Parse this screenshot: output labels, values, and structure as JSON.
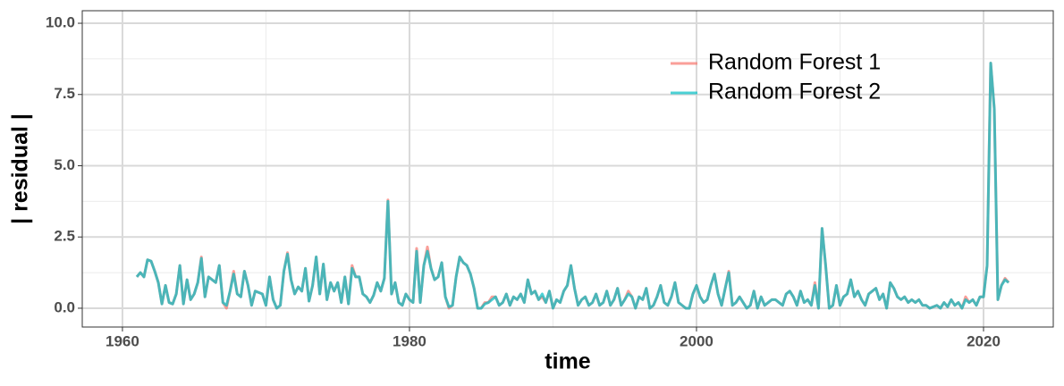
{
  "chart_data": {
    "type": "line",
    "xlabel": "time",
    "ylabel": "| residual |",
    "xlim": [
      1957.2,
      2024.86
    ],
    "ylim": [
      -0.66,
      10.44
    ],
    "xticks": [
      1960,
      1980,
      2000,
      2020
    ],
    "yticks": [
      {
        "value": 0,
        "label": "0.0"
      },
      {
        "value": 2.5,
        "label": "2.5"
      },
      {
        "value": 5,
        "label": "5.0"
      },
      {
        "value": 7.5,
        "label": "7.5"
      },
      {
        "value": 10,
        "label": "10.0"
      }
    ],
    "x_minor_gridlines": [
      1970,
      1990,
      2010
    ],
    "y_minor_gridlines": [
      1.25,
      3.75,
      6.25,
      8.75
    ],
    "grid": true,
    "legend_position": "top-right",
    "line_alpha": 0.7,
    "x": [
      1961,
      1961.25,
      1961.5,
      1961.75,
      1962,
      1962.25,
      1962.5,
      1962.75,
      1963,
      1963.25,
      1963.5,
      1963.75,
      1964,
      1964.25,
      1964.5,
      1964.75,
      1965,
      1965.25,
      1965.5,
      1965.75,
      1966,
      1966.25,
      1966.5,
      1966.75,
      1967,
      1967.25,
      1967.5,
      1967.75,
      1968,
      1968.25,
      1968.5,
      1968.75,
      1969,
      1969.25,
      1969.5,
      1969.75,
      1970,
      1970.25,
      1970.5,
      1970.75,
      1971,
      1971.25,
      1971.5,
      1971.75,
      1972,
      1972.25,
      1972.5,
      1972.75,
      1973,
      1973.25,
      1973.5,
      1973.75,
      1974,
      1974.25,
      1974.5,
      1974.75,
      1975,
      1975.25,
      1975.5,
      1975.75,
      1976,
      1976.25,
      1976.5,
      1976.75,
      1977,
      1977.25,
      1977.5,
      1977.75,
      1978,
      1978.25,
      1978.5,
      1978.75,
      1979,
      1979.25,
      1979.5,
      1979.75,
      1980,
      1980.25,
      1980.5,
      1980.75,
      1981,
      1981.25,
      1981.5,
      1981.75,
      1982,
      1982.25,
      1982.5,
      1982.75,
      1983,
      1983.25,
      1983.5,
      1983.75,
      1984,
      1984.25,
      1984.5,
      1984.75,
      1985,
      1985.25,
      1985.5,
      1985.75,
      1986,
      1986.25,
      1986.5,
      1986.75,
      1987,
      1987.25,
      1987.5,
      1987.75,
      1988,
      1988.25,
      1988.5,
      1988.75,
      1989,
      1989.25,
      1989.5,
      1989.75,
      1990,
      1990.25,
      1990.5,
      1990.75,
      1991,
      1991.25,
      1991.5,
      1991.75,
      1992,
      1992.25,
      1992.5,
      1992.75,
      1993,
      1993.25,
      1993.5,
      1993.75,
      1994,
      1994.25,
      1994.5,
      1994.75,
      1995,
      1995.25,
      1995.5,
      1995.75,
      1996,
      1996.25,
      1996.5,
      1996.75,
      1997,
      1997.25,
      1997.5,
      1997.75,
      1998,
      1998.25,
      1998.5,
      1998.75,
      1999,
      1999.25,
      1999.5,
      1999.75,
      2000,
      2000.25,
      2000.5,
      2000.75,
      2001,
      2001.25,
      2001.5,
      2001.75,
      2002,
      2002.25,
      2002.5,
      2002.75,
      2003,
      2003.25,
      2003.5,
      2003.75,
      2004,
      2004.25,
      2004.5,
      2004.75,
      2005,
      2005.25,
      2005.5,
      2005.75,
      2006,
      2006.25,
      2006.5,
      2006.75,
      2007,
      2007.25,
      2007.5,
      2007.75,
      2008,
      2008.25,
      2008.5,
      2008.75,
      2009,
      2009.25,
      2009.5,
      2009.75,
      2010,
      2010.25,
      2010.5,
      2010.75,
      2011,
      2011.25,
      2011.5,
      2011.75,
      2012,
      2012.25,
      2012.5,
      2012.75,
      2013,
      2013.25,
      2013.5,
      2013.75,
      2014,
      2014.25,
      2014.5,
      2014.75,
      2015,
      2015.25,
      2015.5,
      2015.75,
      2016,
      2016.25,
      2016.5,
      2016.75,
      2017,
      2017.25,
      2017.5,
      2017.75,
      2018,
      2018.25,
      2018.5,
      2018.75,
      2019,
      2019.25,
      2019.5,
      2019.75,
      2020,
      2020.25,
      2020.5,
      2020.75,
      2021,
      2021.25,
      2021.5,
      2021.75
    ],
    "series": [
      {
        "name": "Random Forest 1",
        "color": "#F8766D",
        "values": [
          1.1,
          1.25,
          1.1,
          1.7,
          1.65,
          1.3,
          0.9,
          0.15,
          0.8,
          0.2,
          0.15,
          0.5,
          1.5,
          0.15,
          1.0,
          0.3,
          0.5,
          0.9,
          1.8,
          0.4,
          1.1,
          1.0,
          0.9,
          1.5,
          0.2,
          0.0,
          0.6,
          1.3,
          0.5,
          0.4,
          1.3,
          0.8,
          0.1,
          0.6,
          0.55,
          0.5,
          0.1,
          1.1,
          0.3,
          0.0,
          0.1,
          1.3,
          1.95,
          1.0,
          0.5,
          0.75,
          0.6,
          1.4,
          0.25,
          0.8,
          1.8,
          0.5,
          1.55,
          0.3,
          0.9,
          0.6,
          0.9,
          0.2,
          1.1,
          0.15,
          1.5,
          1.1,
          1.1,
          0.5,
          0.4,
          0.2,
          0.45,
          0.9,
          0.6,
          1.05,
          3.8,
          0.5,
          0.9,
          0.2,
          0.1,
          0.5,
          0.3,
          0.2,
          2.1,
          0.2,
          1.5,
          2.15,
          1.4,
          1.0,
          1.1,
          1.6,
          0.4,
          0.0,
          0.1,
          1.1,
          1.8,
          1.6,
          1.5,
          1.2,
          0.7,
          0.0,
          0.0,
          0.2,
          0.2,
          0.4,
          0.4,
          0.1,
          0.2,
          0.5,
          0.1,
          0.4,
          0.3,
          0.5,
          0.2,
          1.0,
          0.5,
          0.6,
          0.3,
          0.4,
          0.2,
          0.6,
          0.0,
          0.3,
          0.2,
          0.6,
          0.8,
          1.5,
          0.7,
          0.1,
          0.3,
          0.4,
          0.1,
          0.2,
          0.5,
          0.1,
          0.2,
          0.6,
          0.1,
          0.3,
          0.7,
          0.1,
          0.3,
          0.6,
          0.4,
          0.0,
          0.4,
          0.3,
          0.7,
          0.0,
          0.1,
          0.4,
          0.8,
          0.2,
          0.1,
          0.4,
          0.9,
          0.2,
          0.1,
          0.0,
          0.0,
          0.5,
          0.8,
          0.4,
          0.2,
          0.3,
          0.8,
          1.2,
          0.5,
          0.1,
          0.7,
          1.3,
          0.1,
          0.2,
          0.4,
          0.2,
          0.0,
          0.1,
          0.6,
          0.0,
          0.4,
          0.1,
          0.2,
          0.3,
          0.3,
          0.2,
          0.1,
          0.5,
          0.6,
          0.4,
          0.1,
          0.6,
          0.2,
          0.3,
          0.1,
          0.9,
          0.0,
          2.8,
          1.5,
          0.0,
          0.1,
          0.8,
          0.1,
          0.4,
          0.5,
          1.0,
          0.4,
          0.6,
          0.3,
          0.1,
          0.5,
          0.6,
          0.7,
          0.3,
          0.5,
          0.0,
          0.9,
          0.7,
          0.4,
          0.3,
          0.4,
          0.2,
          0.3,
          0.2,
          0.3,
          0.1,
          0.1,
          0.0,
          0.05,
          0.1,
          0.0,
          0.2,
          0.05,
          0.3,
          0.1,
          0.2,
          0.0,
          0.4,
          0.2,
          0.3,
          0.1,
          0.4,
          0.4,
          1.5,
          8.6,
          7.0,
          0.3,
          0.8,
          1.05,
          0.9
        ]
      },
      {
        "name": "Random Forest 2",
        "color": "#00BFC4",
        "values": [
          1.1,
          1.25,
          1.1,
          1.7,
          1.65,
          1.3,
          0.9,
          0.15,
          0.8,
          0.2,
          0.15,
          0.5,
          1.5,
          0.15,
          1.0,
          0.3,
          0.5,
          0.9,
          1.75,
          0.4,
          1.1,
          1.0,
          0.9,
          1.5,
          0.2,
          0.1,
          0.6,
          1.2,
          0.5,
          0.4,
          1.3,
          0.8,
          0.1,
          0.6,
          0.55,
          0.5,
          0.1,
          1.1,
          0.3,
          0.0,
          0.1,
          1.3,
          1.9,
          1.0,
          0.5,
          0.75,
          0.6,
          1.4,
          0.25,
          0.8,
          1.8,
          0.5,
          1.55,
          0.3,
          0.9,
          0.6,
          0.9,
          0.2,
          1.1,
          0.15,
          1.4,
          1.1,
          1.1,
          0.5,
          0.4,
          0.2,
          0.45,
          0.9,
          0.6,
          1.05,
          3.75,
          0.5,
          0.9,
          0.2,
          0.1,
          0.5,
          0.3,
          0.2,
          2.0,
          0.2,
          1.5,
          2.0,
          1.4,
          1.0,
          1.1,
          1.6,
          0.4,
          0.05,
          0.1,
          1.1,
          1.8,
          1.6,
          1.5,
          1.2,
          0.7,
          0.0,
          0.0,
          0.15,
          0.2,
          0.3,
          0.4,
          0.1,
          0.2,
          0.5,
          0.1,
          0.4,
          0.3,
          0.5,
          0.2,
          1.0,
          0.5,
          0.6,
          0.3,
          0.5,
          0.2,
          0.6,
          0.0,
          0.3,
          0.2,
          0.6,
          0.8,
          1.5,
          0.7,
          0.1,
          0.3,
          0.4,
          0.1,
          0.2,
          0.5,
          0.1,
          0.2,
          0.6,
          0.1,
          0.3,
          0.7,
          0.1,
          0.3,
          0.5,
          0.4,
          0.0,
          0.4,
          0.3,
          0.7,
          0.0,
          0.1,
          0.4,
          0.8,
          0.2,
          0.1,
          0.4,
          0.9,
          0.2,
          0.1,
          0.0,
          0.0,
          0.5,
          0.8,
          0.4,
          0.2,
          0.3,
          0.8,
          1.2,
          0.5,
          0.1,
          0.7,
          1.25,
          0.1,
          0.2,
          0.4,
          0.2,
          0.0,
          0.1,
          0.6,
          0.0,
          0.4,
          0.1,
          0.2,
          0.3,
          0.3,
          0.2,
          0.1,
          0.5,
          0.6,
          0.4,
          0.1,
          0.6,
          0.2,
          0.3,
          0.1,
          0.8,
          0.0,
          2.8,
          1.5,
          0.0,
          0.1,
          0.8,
          0.1,
          0.4,
          0.5,
          1.0,
          0.4,
          0.6,
          0.3,
          0.1,
          0.5,
          0.6,
          0.7,
          0.3,
          0.5,
          0.0,
          0.9,
          0.7,
          0.4,
          0.3,
          0.4,
          0.2,
          0.3,
          0.2,
          0.3,
          0.1,
          0.1,
          0.0,
          0.05,
          0.1,
          0.0,
          0.2,
          0.05,
          0.3,
          0.1,
          0.2,
          0.0,
          0.3,
          0.2,
          0.3,
          0.1,
          0.4,
          0.4,
          1.5,
          8.6,
          7.0,
          0.3,
          0.8,
          1.0,
          0.9
        ]
      }
    ]
  }
}
